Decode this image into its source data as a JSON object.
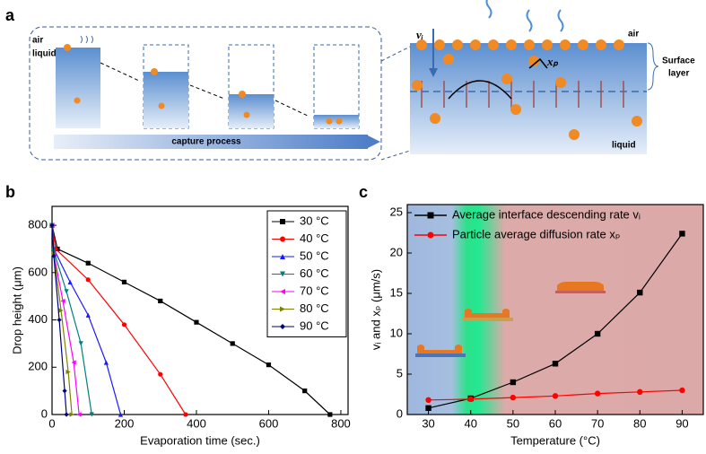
{
  "diagram": {
    "label": "a",
    "air_left": "air",
    "liquid_left": "liquid",
    "process": "capture process",
    "vi": "vᵢ",
    "xp": "xₚ",
    "air_right": "air",
    "surface": [
      "Surface",
      "layer"
    ],
    "liquid_right": "liquid"
  },
  "chart_data": [
    {
      "type": "line",
      "label": "b",
      "x_label": "Evaporation time (sec.)",
      "y_label": "Drop height (μm)",
      "xlim": [
        0,
        820
      ],
      "xticks": [
        0,
        200,
        400,
        600,
        800
      ],
      "ylim": [
        0,
        880
      ],
      "yticks": [
        0,
        200,
        400,
        600,
        800
      ],
      "legend": "upper right",
      "series": [
        {
          "name": "30 °C",
          "color": "#000000",
          "marker": "square",
          "x": [
            0,
            15,
            100,
            200,
            300,
            400,
            500,
            600,
            700,
            770
          ],
          "values": [
            800,
            700,
            640,
            560,
            480,
            390,
            300,
            210,
            100,
            0
          ]
        },
        {
          "name": "40 °C",
          "color": "#ff0000",
          "marker": "circle",
          "x": [
            0,
            10,
            100,
            200,
            300,
            370
          ],
          "values": [
            800,
            700,
            570,
            380,
            170,
            0
          ]
        },
        {
          "name": "50 °C",
          "color": "#1a1aff",
          "marker": "triangle-up",
          "x": [
            0,
            5,
            50,
            100,
            150,
            190
          ],
          "values": [
            800,
            700,
            560,
            420,
            220,
            0
          ]
        },
        {
          "name": "60 °C",
          "color": "#008080",
          "marker": "triangle-down",
          "x": [
            0,
            5,
            40,
            80,
            110
          ],
          "values": [
            800,
            690,
            520,
            300,
            0
          ]
        },
        {
          "name": "70 °C",
          "color": "#ff00ff",
          "marker": "triangle-left",
          "x": [
            0,
            5,
            30,
            60,
            75
          ],
          "values": [
            800,
            680,
            480,
            220,
            0
          ]
        },
        {
          "name": "80 °C",
          "color": "#808000",
          "marker": "triangle-right",
          "x": [
            0,
            5,
            25,
            45,
            55
          ],
          "values": [
            800,
            680,
            440,
            180,
            0
          ]
        },
        {
          "name": "90 °C",
          "color": "#000080",
          "marker": "diamond",
          "x": [
            0,
            5,
            20,
            35,
            40
          ],
          "values": [
            800,
            670,
            400,
            100,
            0
          ]
        }
      ]
    },
    {
      "type": "line",
      "label": "c",
      "x_label": "Temperature (°C)",
      "y_label": "vᵢ and xₚ (μm/s)",
      "xlim": [
        25,
        95
      ],
      "xticks": [
        30,
        40,
        50,
        60,
        70,
        80,
        90
      ],
      "ylim": [
        0,
        26
      ],
      "yticks": [
        0,
        5,
        10,
        15,
        20,
        25
      ],
      "legend": "upper left",
      "x": [
        30,
        40,
        50,
        60,
        70,
        80,
        90
      ],
      "series": [
        {
          "name": "Average interface descending rate vᵢ",
          "color": "#000000",
          "marker": "square",
          "values": [
            0.8,
            2.0,
            4.0,
            6.3,
            10.0,
            15.1,
            22.4
          ]
        },
        {
          "name": "Particle average diffusion rate xₚ",
          "color": "#ff0000",
          "marker": "circle",
          "values": [
            1.8,
            1.9,
            2.1,
            2.3,
            2.6,
            2.8,
            3.0
          ]
        }
      ]
    }
  ]
}
